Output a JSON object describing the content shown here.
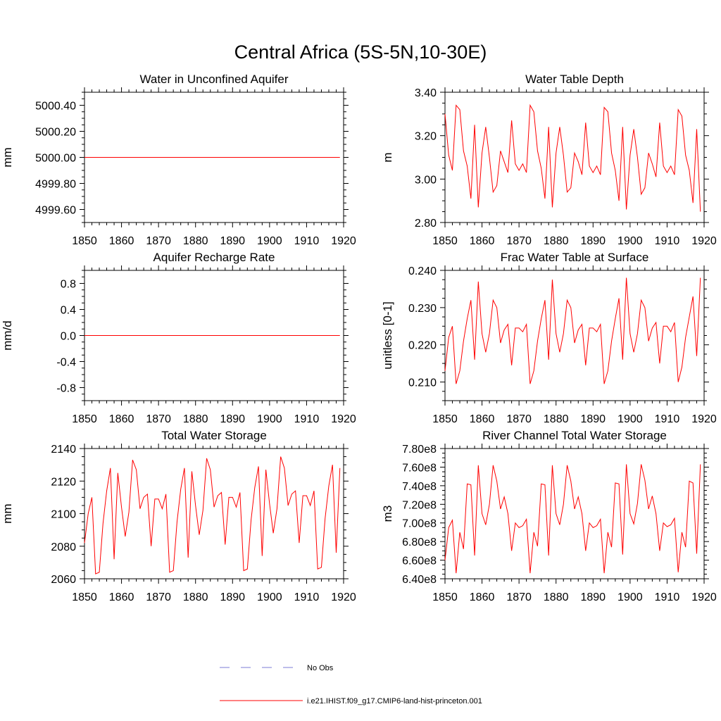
{
  "title": "Central Africa (5S-5N,10-30E)",
  "series_color": "#ff0000",
  "obs_color": "#7b7bd6",
  "legend": {
    "obs_label": "No Obs",
    "model_label": "i.e21.IHIST.f09_g17.CMIP6-land-hist-princeton.001"
  },
  "chart_data": [
    {
      "type": "line",
      "title": "Water in Unconfined Aquifer",
      "ylabel": "mm",
      "xlim": [
        1850,
        1920
      ],
      "ylim": [
        4999.5,
        5000.5
      ],
      "xticks": [
        1850,
        1860,
        1870,
        1880,
        1890,
        1900,
        1910,
        1920
      ],
      "xtick_labels": [
        "1850",
        "1860",
        "1870",
        "1880",
        "1890",
        "1900",
        "1910",
        "1920"
      ],
      "yticks": [
        4999.6,
        4999.8,
        5000.0,
        5000.2,
        5000.4
      ],
      "ytick_labels": [
        "4999.60",
        "4999.80",
        "5000.00",
        "5000.20",
        "5000.40"
      ],
      "x_start": 1850,
      "values": [
        5000,
        5000,
        5000,
        5000,
        5000,
        5000,
        5000,
        5000,
        5000,
        5000,
        5000,
        5000,
        5000,
        5000,
        5000,
        5000,
        5000,
        5000,
        5000,
        5000,
        5000,
        5000,
        5000,
        5000,
        5000,
        5000,
        5000,
        5000,
        5000,
        5000,
        5000,
        5000,
        5000,
        5000,
        5000,
        5000,
        5000,
        5000,
        5000,
        5000,
        5000,
        5000,
        5000,
        5000,
        5000,
        5000,
        5000,
        5000,
        5000,
        5000,
        5000,
        5000,
        5000,
        5000,
        5000,
        5000,
        5000,
        5000,
        5000,
        5000,
        5000,
        5000,
        5000,
        5000,
        5000,
        5000,
        5000,
        5000,
        5000,
        5000
      ]
    },
    {
      "type": "line",
      "title": "Water Table Depth",
      "ylabel": "m",
      "xlim": [
        1850,
        1920
      ],
      "ylim": [
        2.8,
        3.4
      ],
      "xticks": [
        1850,
        1860,
        1870,
        1880,
        1890,
        1900,
        1910,
        1920
      ],
      "xtick_labels": [
        "1850",
        "1860",
        "1870",
        "1880",
        "1890",
        "1900",
        "1910",
        "1920"
      ],
      "yticks": [
        2.8,
        3.0,
        3.2,
        3.4
      ],
      "ytick_labels": [
        "2.80",
        "3.00",
        "3.20",
        "3.40"
      ],
      "x_start": 1850,
      "values": [
        3.3,
        3.11,
        3.04,
        3.34,
        3.32,
        3.13,
        3.06,
        2.91,
        3.25,
        2.87,
        3.12,
        3.24,
        3.1,
        2.94,
        2.97,
        3.13,
        3.08,
        3.03,
        3.27,
        3.07,
        3.04,
        3.07,
        3.03,
        3.34,
        3.31,
        3.13,
        3.05,
        2.91,
        3.24,
        2.87,
        3.12,
        3.24,
        3.11,
        2.94,
        2.96,
        3.12,
        3.08,
        3.02,
        3.26,
        3.06,
        3.03,
        3.06,
        3.02,
        3.33,
        3.31,
        3.12,
        3.04,
        2.9,
        3.24,
        2.86,
        3.11,
        3.23,
        3.1,
        2.93,
        2.96,
        3.12,
        3.07,
        3.01,
        3.26,
        3.06,
        3.03,
        3.06,
        3.02,
        3.32,
        3.29,
        3.11,
        3.04,
        2.89,
        3.23,
        2.85
      ]
    },
    {
      "type": "line",
      "title": "Aquifer Recharge Rate",
      "ylabel": "mm/d",
      "xlim": [
        1850,
        1920
      ],
      "ylim": [
        -1.0,
        1.0
      ],
      "xticks": [
        1850,
        1860,
        1870,
        1880,
        1890,
        1900,
        1910,
        1920
      ],
      "xtick_labels": [
        "1850",
        "1860",
        "1870",
        "1880",
        "1890",
        "1900",
        "1910",
        "1920"
      ],
      "yticks": [
        -0.8,
        -0.4,
        0.0,
        0.4,
        0.8
      ],
      "ytick_labels": [
        "-0.8",
        "-0.4",
        "0.0",
        "0.4",
        "0.8"
      ],
      "x_start": 1850,
      "values": [
        0,
        0,
        0,
        0,
        0,
        0,
        0,
        0,
        0,
        0,
        0,
        0,
        0,
        0,
        0,
        0,
        0,
        0,
        0,
        0,
        0,
        0,
        0,
        0,
        0,
        0,
        0,
        0,
        0,
        0,
        0,
        0,
        0,
        0,
        0,
        0,
        0,
        0,
        0,
        0,
        0,
        0,
        0,
        0,
        0,
        0,
        0,
        0,
        0,
        0,
        0,
        0,
        0,
        0,
        0,
        0,
        0,
        0,
        0,
        0,
        0,
        0,
        0,
        0,
        0,
        0,
        0,
        0,
        0,
        0
      ]
    },
    {
      "type": "line",
      "title": "Frac Water Table at Surface",
      "ylabel": "unitless [0-1]",
      "xlim": [
        1850,
        1920
      ],
      "ylim": [
        0.205,
        0.24
      ],
      "xticks": [
        1850,
        1860,
        1870,
        1880,
        1890,
        1900,
        1910,
        1920
      ],
      "xtick_labels": [
        "1850",
        "1860",
        "1870",
        "1880",
        "1890",
        "1900",
        "1910",
        "1920"
      ],
      "yticks": [
        0.21,
        0.22,
        0.23,
        0.24
      ],
      "ytick_labels": [
        "0.210",
        "0.220",
        "0.230",
        "0.240"
      ],
      "x_start": 1850,
      "values": [
        0.213,
        0.222,
        0.225,
        0.2095,
        0.213,
        0.221,
        0.227,
        0.232,
        0.216,
        0.237,
        0.223,
        0.218,
        0.223,
        0.232,
        0.23,
        0.2205,
        0.224,
        0.2255,
        0.2145,
        0.2245,
        0.2245,
        0.2235,
        0.2255,
        0.2095,
        0.213,
        0.221,
        0.227,
        0.232,
        0.216,
        0.2375,
        0.223,
        0.218,
        0.223,
        0.232,
        0.23,
        0.2205,
        0.224,
        0.2255,
        0.2145,
        0.2245,
        0.2245,
        0.2235,
        0.2255,
        0.2095,
        0.213,
        0.221,
        0.227,
        0.2325,
        0.216,
        0.238,
        0.223,
        0.218,
        0.223,
        0.232,
        0.23,
        0.221,
        0.2245,
        0.226,
        0.215,
        0.225,
        0.225,
        0.2235,
        0.226,
        0.21,
        0.214,
        0.222,
        0.2275,
        0.233,
        0.217,
        0.238
      ]
    },
    {
      "type": "line",
      "title": "Total Water Storage",
      "ylabel": "mm",
      "xlim": [
        1850,
        1920
      ],
      "ylim": [
        2060,
        2140
      ],
      "xticks": [
        1850,
        1860,
        1870,
        1880,
        1890,
        1900,
        1910,
        1920
      ],
      "xtick_labels": [
        "1850",
        "1860",
        "1870",
        "1880",
        "1890",
        "1900",
        "1910",
        "1920"
      ],
      "yticks": [
        2060,
        2080,
        2100,
        2120,
        2140
      ],
      "ytick_labels": [
        "2060",
        "2080",
        "2100",
        "2120",
        "2140"
      ],
      "x_start": 1850,
      "values": [
        2082,
        2100,
        2110,
        2063,
        2064,
        2094,
        2114,
        2128,
        2072,
        2125,
        2104,
        2086,
        2101,
        2133,
        2127,
        2103,
        2110,
        2112,
        2080,
        2109,
        2109,
        2103,
        2112,
        2064,
        2065,
        2095,
        2115,
        2128,
        2073,
        2126,
        2105,
        2087,
        2102,
        2134,
        2127,
        2104,
        2111,
        2113,
        2081,
        2110,
        2110,
        2104,
        2113,
        2065,
        2066,
        2096,
        2116,
        2129,
        2074,
        2127,
        2106,
        2088,
        2103,
        2135,
        2128,
        2105,
        2112,
        2114,
        2082,
        2111,
        2111,
        2105,
        2114,
        2066,
        2067,
        2097,
        2117,
        2130,
        2076,
        2128
      ]
    },
    {
      "type": "line",
      "title": "River Channel Total Water Storage",
      "ylabel": "m3",
      "xlim": [
        1850,
        1920
      ],
      "ylim": [
        640000000.0,
        780000000.0
      ],
      "xticks": [
        1850,
        1860,
        1870,
        1880,
        1890,
        1900,
        1910,
        1920
      ],
      "xtick_labels": [
        "1850",
        "1860",
        "1870",
        "1880",
        "1890",
        "1900",
        "1910",
        "1920"
      ],
      "yticks": [
        640000000.0,
        660000000.0,
        680000000.0,
        700000000.0,
        720000000.0,
        740000000.0,
        760000000.0,
        780000000.0
      ],
      "ytick_labels": [
        "6.40e8",
        "6.60e8",
        "6.80e8",
        "7.00e8",
        "7.20e8",
        "7.40e8",
        "7.60e8",
        "7.80e8"
      ],
      "x_start": 1850,
      "values": [
        660000000.0,
        695000000.0,
        703000000.0,
        646000000.0,
        690000000.0,
        672000000.0,
        742000000.0,
        741000000.0,
        665000000.0,
        762000000.0,
        710000000.0,
        698000000.0,
        720000000.0,
        762000000.0,
        745000000.0,
        715000000.0,
        728000000.0,
        710000000.0,
        670000000.0,
        700000000.0,
        695000000.0,
        697000000.0,
        704000000.0,
        646000000.0,
        690000000.0,
        675000000.0,
        742000000.0,
        741000000.0,
        665000000.0,
        762000000.0,
        710000000.0,
        698000000.0,
        720000000.0,
        762000000.0,
        745000000.0,
        715000000.0,
        728000000.0,
        710000000.0,
        670000000.0,
        700000000.0,
        695000000.0,
        697000000.0,
        704000000.0,
        646000000.0,
        690000000.0,
        674000000.0,
        743000000.0,
        742000000.0,
        666000000.0,
        763000000.0,
        710000000.0,
        699000000.0,
        721000000.0,
        763000000.0,
        746000000.0,
        715000000.0,
        729000000.0,
        710000000.0,
        670000000.0,
        700000000.0,
        696000000.0,
        698000000.0,
        705000000.0,
        647000000.0,
        690000000.0,
        674000000.0,
        745000000.0,
        743000000.0,
        667000000.0,
        763000000.0
      ]
    }
  ]
}
